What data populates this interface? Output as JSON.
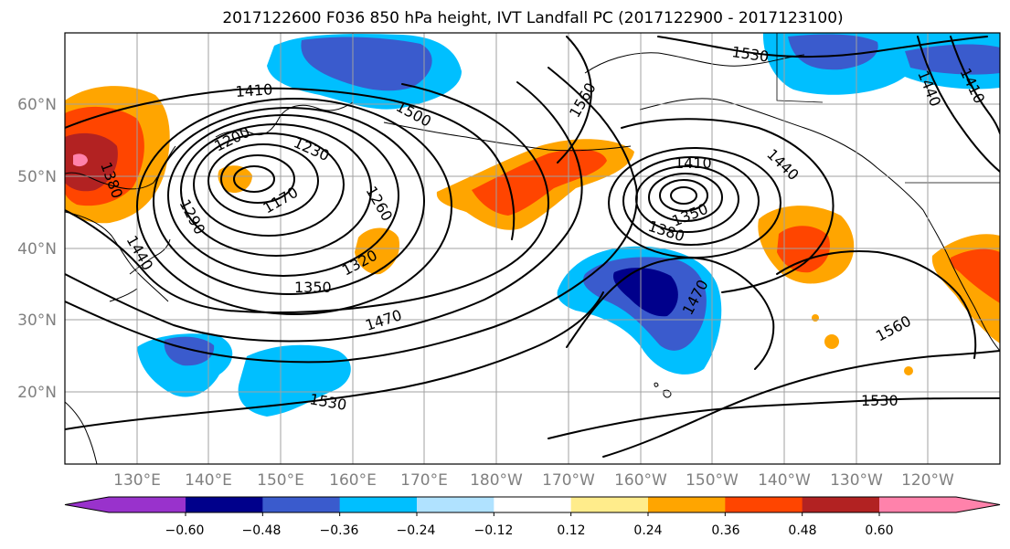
{
  "figure": {
    "title": "2017122600 F036 850 hPa height, IVT Landfall PC (2017122900 - 2017123100)"
  },
  "map": {
    "lon_labels": [
      "130°E",
      "140°E",
      "150°E",
      "160°E",
      "170°E",
      "180°W",
      "170°W",
      "160°W",
      "150°W",
      "140°W",
      "130°W",
      "120°W"
    ],
    "lat_labels": [
      "60°N",
      "50°N",
      "40°N",
      "30°N",
      "20°N"
    ],
    "contour_labels": [
      "1410",
      "1380",
      "1440",
      "1500",
      "1200",
      "1230",
      "1260",
      "1170",
      "1290",
      "1320",
      "1350",
      "1470",
      "1530",
      "1560",
      "1530",
      "1410",
      "1440",
      "1350",
      "1380",
      "1470",
      "1560",
      "1530",
      "1410",
      "1440"
    ]
  },
  "colorbar": {
    "tick_labels": [
      "−0.60",
      "−0.48",
      "−0.36",
      "−0.24",
      "−0.12",
      "0.12",
      "0.24",
      "0.36",
      "0.48",
      "0.60"
    ],
    "colors": [
      "#9932cc",
      "#00008b",
      "#3a5bcd",
      "#00bfff",
      "#b0e2ff",
      "#ffffff",
      "#ffec8b",
      "#ffa500",
      "#ff4500",
      "#b22222",
      "#ff82ab"
    ]
  }
}
